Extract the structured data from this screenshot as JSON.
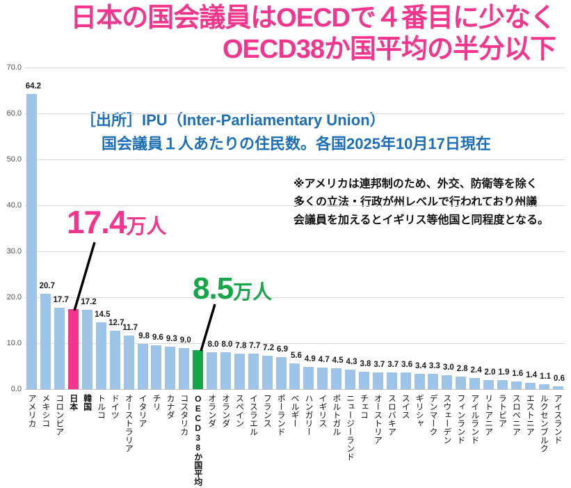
{
  "chart_data": {
    "type": "bar",
    "title_line1": "日本の国会議員はOECDで４番目に少なく",
    "title_line2": "OECD38か国平均の半分以下",
    "source_line1": "［出所］IPU（Inter-Parliamentary Union）",
    "source_line2": "国会議員１人あたりの住民数。各国2025年10月17日現在",
    "note_line1": "※アメリカは連邦制のため、外交、防衛等を除く",
    "note_line2": "多くの立法・行政が州レベルで行われており州議",
    "note_line3": "会議員を加えるとイギリス等他国と同程度となる。",
    "annotation_japan": {
      "value": "17.4",
      "unit": "万人",
      "color": "#F2358D"
    },
    "annotation_oecd": {
      "value": "8.5",
      "unit": "万人",
      "color": "#17A54A"
    },
    "xlabel": "",
    "ylabel": "",
    "ylim": [
      0,
      70
    ],
    "grid": true,
    "legend": null,
    "yticks": [
      "70.0",
      "60.0",
      "50.0",
      "40.0",
      "30.0",
      "20.0",
      "10.0",
      "0.0"
    ],
    "categories": [
      "アメリカ",
      "メキシコ",
      "コロンビア",
      "日本",
      "韓国",
      "トルコ",
      "ドイツ",
      "オーストラリア",
      "イタリア",
      "チリ",
      "カナダ",
      "コスタリカ",
      "OECD38か国平均",
      "オランダ",
      "オランダ",
      "スペイン",
      "イスラエル",
      "フランス",
      "ポーランド",
      "ベルギー",
      "ハンガリー",
      "イギリス",
      "ポルトガル",
      "ニュージーランド",
      "チェコ",
      "オーストリア",
      "スロバキア",
      "スイス",
      "ギリシャ",
      "デンマーク",
      "スウェーデン",
      "フィンランド",
      "アイルランド",
      "リトアニア",
      "ラトビア",
      "スロベニア",
      "エストニア",
      "ルクセンブルク",
      "アイスランド"
    ],
    "values": [
      64.2,
      20.7,
      17.7,
      17.4,
      17.2,
      14.5,
      12.7,
      11.7,
      9.8,
      9.6,
      9.3,
      9.0,
      8.5,
      8.0,
      8.0,
      7.8,
      7.7,
      7.2,
      6.9,
      5.6,
      4.9,
      4.7,
      4.5,
      4.3,
      3.8,
      3.7,
      3.7,
      3.6,
      3.4,
      3.3,
      3.0,
      2.8,
      2.4,
      2.0,
      1.9,
      1.6,
      1.4,
      1.1,
      0.6
    ],
    "data_labels": [
      "64.2",
      "20.7",
      "17.7",
      "",
      "17.2",
      "14.5",
      "12.7",
      "11.7",
      "9.8",
      "9.6",
      "9.3",
      "9.0",
      "",
      "8.0",
      "8.0",
      "7.8",
      "7.7",
      "7.2",
      "6.9",
      "5.6",
      "4.9",
      "4.7",
      "4.5",
      "4.3",
      "3.8",
      "3.7",
      "3.7",
      "3.6",
      "3.4",
      "3.3",
      "3.0",
      "2.8",
      "2.4",
      "2.0",
      "1.9",
      "1.6",
      "1.4",
      "1.1",
      "0.6"
    ],
    "bold_category_indexes": [
      3,
      4,
      12
    ],
    "bar_color": "#9DC3E6",
    "highlight_bars": [
      {
        "index": 3,
        "label": "日本",
        "color": "#F2358D"
      },
      {
        "index": 12,
        "label": "OECD38か国平均",
        "color": "#17A54A"
      }
    ]
  }
}
